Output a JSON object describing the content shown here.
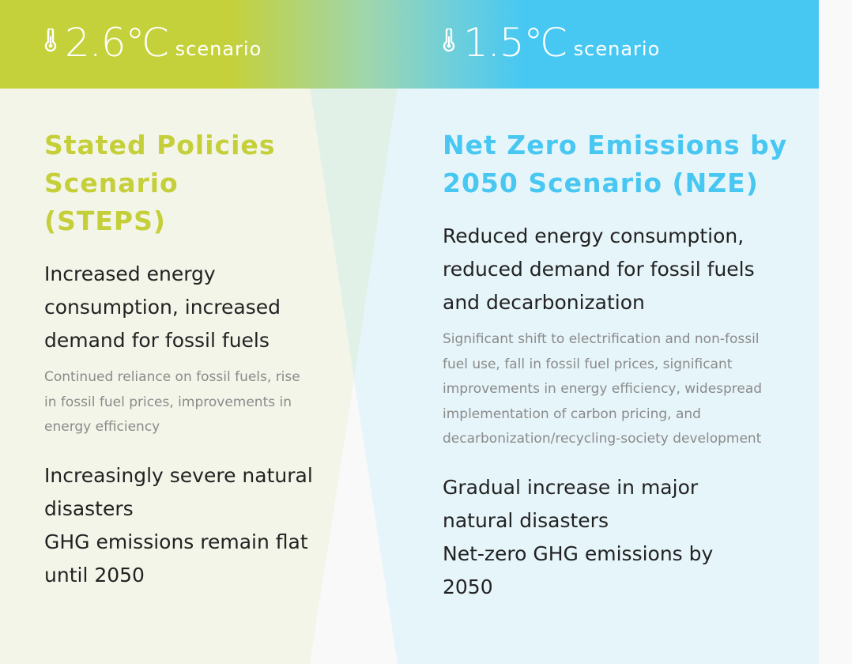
{
  "colors": {
    "steps": "#c5cf3a",
    "nze": "#47c7f2"
  },
  "left": {
    "temp": "2.6℃",
    "word": "scenario",
    "title": "Stated Policies Scenario (STEPS)",
    "lead": "Increased energy consumption, increased demand for fossil fuels",
    "note": "Continued reliance on fossil fuels, rise in fossil fuel prices, improvements in energy efficiency",
    "tail": "Increasingly severe natural disasters\nGHG emissions remain flat until 2050"
  },
  "right": {
    "temp": "1.5℃",
    "word": "scenario",
    "title": "Net Zero Emissions by 2050 Scenario (NZE)",
    "lead": "Reduced energy consumption, reduced demand for fossil fuels and decarbonization",
    "note": "Significant shift to electrification and non-fossil fuel use, fall in fossil fuel prices, significant improvements in energy efficiency, widespread implementation of carbon pricing, and decarbonization/recycling-society development",
    "tail": "Gradual increase in major natural disasters\nNet-zero GHG emissions by 2050"
  }
}
